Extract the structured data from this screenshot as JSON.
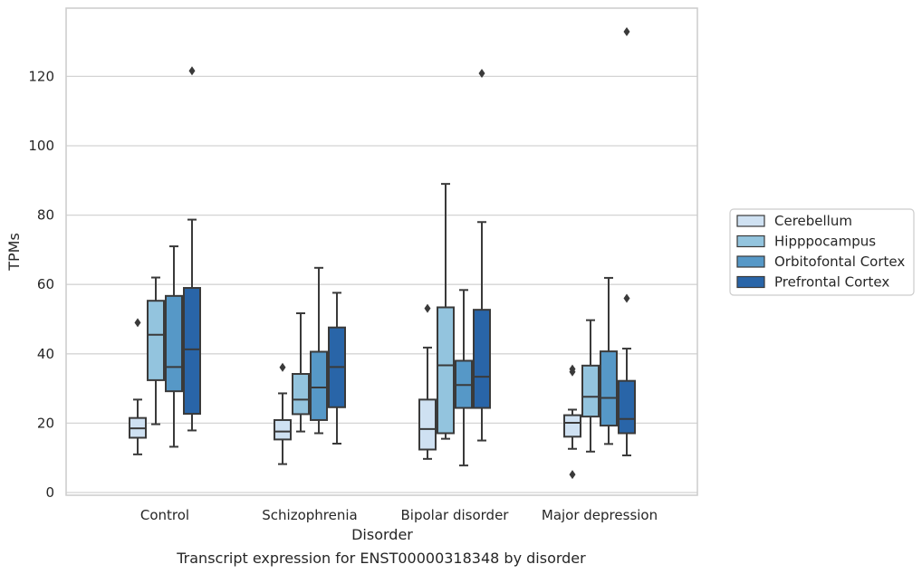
{
  "chart_data": {
    "type": "box",
    "title": "",
    "caption": "Transcript expression for ENST00000318348 by disorder",
    "xlabel": "Disorder",
    "ylabel": "TPMs",
    "ylim": [
      -1,
      140
    ],
    "yticks": [
      0,
      20,
      40,
      60,
      80,
      100,
      120
    ],
    "grid": "horizontal",
    "legend_position": "right",
    "categories": [
      "Control",
      "Schizophrenia",
      "Bipolar disorder",
      "Major depression"
    ],
    "series": [
      {
        "name": "Cerebellum",
        "color": "#cfe1f2",
        "boxes": [
          {
            "whisker_low": 11,
            "q1": 15.8,
            "median": 18.5,
            "q3": 21.5,
            "whisker_high": 26.8,
            "outliers": [
              49
            ]
          },
          {
            "whisker_low": 8.2,
            "q1": 15.3,
            "median": 17.6,
            "q3": 20.9,
            "whisker_high": 28.6,
            "outliers": [
              36.1
            ]
          },
          {
            "whisker_low": 9.7,
            "q1": 12.4,
            "median": 18.3,
            "q3": 26.8,
            "whisker_high": 41.8,
            "outliers": [
              53.1
            ]
          },
          {
            "whisker_low": 12.6,
            "q1": 16.1,
            "median": 20.1,
            "q3": 22.3,
            "whisker_high": 23.9,
            "outliers": [
              35.6,
              34.8,
              5.2
            ]
          }
        ]
      },
      {
        "name": "Hipppocampus",
        "color": "#93c4de",
        "boxes": [
          {
            "whisker_low": 19.7,
            "q1": 32.4,
            "median": 45.5,
            "q3": 55.3,
            "whisker_high": 62.0,
            "outliers": []
          },
          {
            "whisker_low": 17.6,
            "q1": 22.6,
            "median": 26.8,
            "q3": 34.2,
            "whisker_high": 51.7,
            "outliers": []
          },
          {
            "whisker_low": 15.5,
            "q1": 17.1,
            "median": 36.7,
            "q3": 53.4,
            "whisker_high": 89.0,
            "outliers": []
          },
          {
            "whisker_low": 11.8,
            "q1": 21.9,
            "median": 27.6,
            "q3": 36.6,
            "whisker_high": 49.7,
            "outliers": []
          }
        ]
      },
      {
        "name": "Orbitofontal Cortex",
        "color": "#5698c7",
        "boxes": [
          {
            "whisker_low": 13.2,
            "q1": 29.2,
            "median": 36.2,
            "q3": 56.7,
            "whisker_high": 71.0,
            "outliers": []
          },
          {
            "whisker_low": 17.1,
            "q1": 20.9,
            "median": 30.3,
            "q3": 40.6,
            "whisker_high": 64.8,
            "outliers": []
          },
          {
            "whisker_low": 7.8,
            "q1": 24.4,
            "median": 31.0,
            "q3": 38.0,
            "whisker_high": 58.4,
            "outliers": []
          },
          {
            "whisker_low": 14.0,
            "q1": 19.3,
            "median": 27.3,
            "q3": 40.7,
            "whisker_high": 61.9,
            "outliers": []
          }
        ]
      },
      {
        "name": "Prefrontal Cortex",
        "color": "#2965a8",
        "boxes": [
          {
            "whisker_low": 17.9,
            "q1": 22.7,
            "median": 41.3,
            "q3": 59.0,
            "whisker_high": 78.7,
            "outliers": [
              121.6
            ]
          },
          {
            "whisker_low": 14.1,
            "q1": 24.6,
            "median": 36.2,
            "q3": 47.6,
            "whisker_high": 57.6,
            "outliers": []
          },
          {
            "whisker_low": 15.0,
            "q1": 24.4,
            "median": 33.4,
            "q3": 52.7,
            "whisker_high": 78.0,
            "outliers": [
              120.9
            ]
          },
          {
            "whisker_low": 10.7,
            "q1": 17.1,
            "median": 21.2,
            "q3": 32.2,
            "whisker_high": 41.5,
            "outliers": [
              56.0,
              132.9
            ]
          }
        ]
      }
    ]
  }
}
